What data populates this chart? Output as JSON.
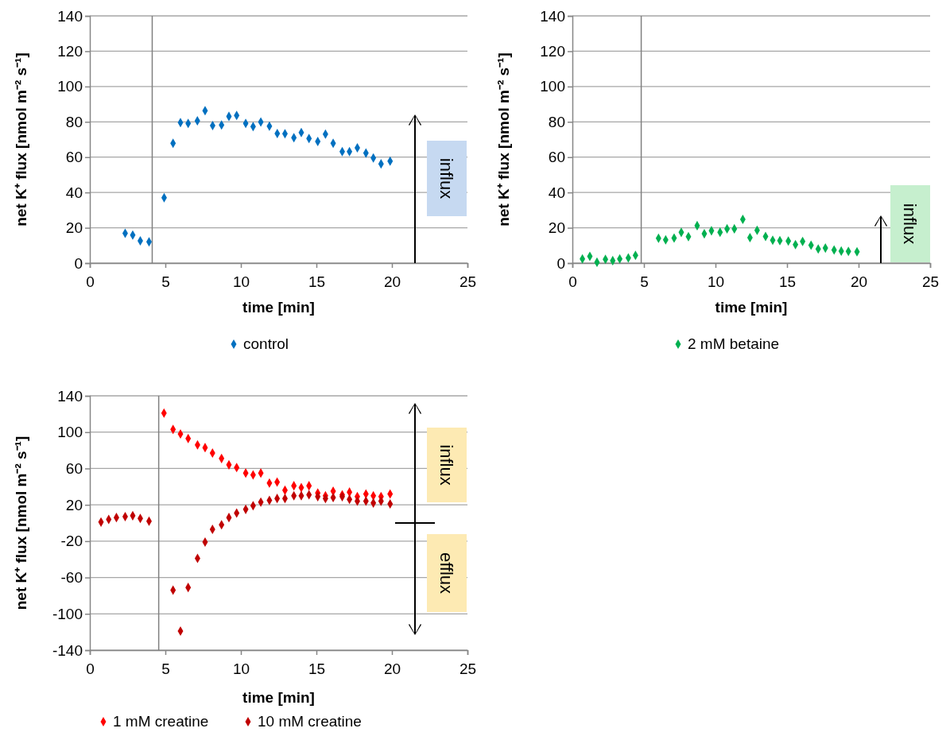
{
  "chart_data": [
    {
      "type": "scatter",
      "xlabel": "time [min]",
      "ylabel": "net K⁺ flux [nmol m⁻² s⁻¹]",
      "xlim": [
        0,
        25
      ],
      "xticks": [
        0,
        5,
        10,
        15,
        20,
        25
      ],
      "ylim": [
        0,
        140
      ],
      "yticks": [
        0,
        20,
        40,
        60,
        80,
        100,
        120,
        140
      ],
      "grid": "y",
      "legend": "bottom",
      "marker": "diamond",
      "annotations": [
        "influx"
      ],
      "ref_lines": [
        {
          "axis": "x",
          "value": 4.13,
          "color": "#808080"
        }
      ],
      "series": [
        {
          "name": "control",
          "color": "#0070c0",
          "x": [
            2.34,
            2.84,
            3.34,
            3.92,
            4.92,
            5.51,
            6.0,
            6.51,
            7.12,
            7.63,
            8.13,
            8.72,
            9.21,
            9.72,
            10.32,
            10.81,
            11.32,
            11.89,
            12.41,
            12.92,
            13.51,
            14.0,
            14.51,
            15.09,
            15.6,
            16.11,
            16.71,
            17.19,
            17.71,
            18.28,
            18.77,
            19.28,
            19.88
          ],
          "values": [
            16.9,
            15.9,
            12.6,
            12.0,
            37.0,
            67.9,
            79.6,
            79.1,
            80.6,
            86.3,
            77.9,
            78.2,
            83.1,
            83.6,
            79.1,
            77.3,
            79.9,
            77.5,
            73.4,
            73.3,
            71.0,
            73.9,
            70.6,
            68.9,
            73.0,
            67.9,
            63.1,
            63.1,
            65.3,
            62.3,
            59.5,
            56.2,
            57.7
          ]
        }
      ]
    },
    {
      "type": "scatter",
      "xlabel": "time [min]",
      "ylabel": "net K⁺ flux [nmol m⁻² s⁻¹]",
      "xlim": [
        0,
        25
      ],
      "xticks": [
        0,
        5,
        10,
        15,
        20,
        25
      ],
      "ylim": [
        0,
        140
      ],
      "yticks": [
        0,
        20,
        40,
        60,
        80,
        100,
        120,
        140
      ],
      "grid": "y",
      "legend": "bottom",
      "marker": "diamond",
      "annotations": [
        "influx"
      ],
      "ref_lines": [
        {
          "axis": "x",
          "value": 4.81,
          "color": "#808080"
        }
      ],
      "series": [
        {
          "name": "2 mM betaine",
          "color": "#00b050",
          "x": [
            0.7,
            1.22,
            1.72,
            2.31,
            2.82,
            3.31,
            3.91,
            4.41,
            6.02,
            6.52,
            7.11,
            7.61,
            8.11,
            8.72,
            9.22,
            9.72,
            10.32,
            10.81,
            11.32,
            11.91,
            12.41,
            12.91,
            13.5,
            14.0,
            14.5,
            15.09,
            15.59,
            16.09,
            16.68,
            17.18,
            17.68,
            18.29,
            18.79,
            19.29,
            19.89
          ],
          "values": [
            2.4,
            3.8,
            0.5,
            2.1,
            1.4,
            2.4,
            2.9,
            4.4,
            14.1,
            13.2,
            14.2,
            17.4,
            15.0,
            21.2,
            16.6,
            18.3,
            17.5,
            19.4,
            19.4,
            24.8,
            14.4,
            18.6,
            15.1,
            12.9,
            12.7,
            12.5,
            10.5,
            12.3,
            10.1,
            8.0,
            8.5,
            7.4,
            6.8,
            6.6,
            6.4
          ]
        }
      ]
    },
    {
      "type": "scatter",
      "xlabel": "time [min]",
      "ylabel": "net K⁺ flux [nmol m⁻² s⁻¹]",
      "xlim": [
        0,
        25
      ],
      "xticks": [
        0,
        5,
        10,
        15,
        20,
        25
      ],
      "ylim": [
        -140,
        140
      ],
      "yticks": [
        -140,
        -100,
        -60,
        -20,
        20,
        60,
        100,
        140
      ],
      "grid": "y",
      "legend": "bottom",
      "marker": "diamond",
      "annotations": [
        "influx",
        "efflux"
      ],
      "ref_lines": [
        {
          "axis": "x",
          "value": 4.56,
          "color": "#808080"
        }
      ],
      "series": [
        {
          "name": "1 mM creatine",
          "color": "#ff0000",
          "x": [
            4.91,
            5.51,
            6.0,
            6.51,
            7.13,
            7.63,
            8.12,
            8.72,
            9.21,
            9.72,
            10.32,
            10.81,
            11.32,
            11.89,
            12.4,
            12.92,
            13.51,
            14.0,
            14.51,
            15.09,
            15.6,
            16.11,
            16.71,
            17.19,
            17.71,
            18.28,
            18.77,
            19.28,
            19.88
          ],
          "values": [
            121,
            103,
            98,
            93,
            86,
            83,
            77,
            71,
            64,
            61,
            55,
            53,
            55,
            44,
            45,
            36,
            41,
            39,
            41,
            33,
            30,
            35,
            31,
            34,
            29,
            32,
            30,
            29,
            32
          ]
        },
        {
          "name": "10 mM creatine",
          "color": "#c00000",
          "x": [
            0.74,
            1.25,
            1.76,
            2.34,
            2.84,
            3.34,
            3.92,
            5.51,
            6.0,
            6.51,
            7.13,
            7.63,
            8.12,
            8.72,
            9.21,
            9.72,
            10.32,
            10.81,
            11.32,
            11.89,
            12.4,
            12.92,
            13.51,
            14.0,
            14.51,
            15.09,
            15.6,
            16.11,
            16.71,
            17.19,
            17.71,
            18.28,
            18.77,
            19.28,
            19.88
          ],
          "values": [
            1,
            4,
            6,
            7,
            8,
            5,
            2,
            -74,
            -119,
            -71,
            -39,
            -21,
            -7,
            -2,
            6,
            11,
            15,
            19,
            23,
            25,
            27,
            27,
            30,
            30,
            31,
            29,
            27,
            28,
            29,
            26,
            24,
            24,
            22,
            24,
            21
          ]
        }
      ]
    }
  ]
}
